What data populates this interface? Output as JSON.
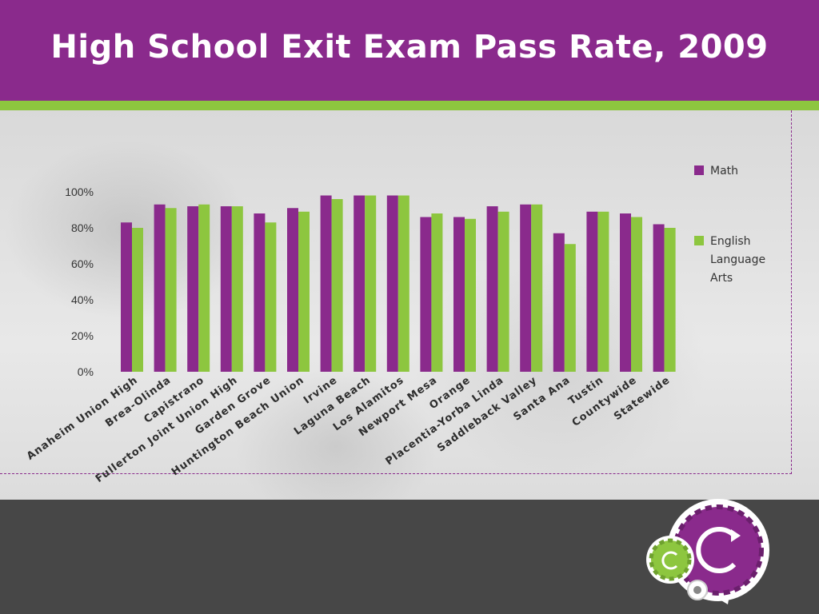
{
  "slide": {
    "title": "High School Exit Exam Pass Rate, 2009"
  },
  "colors": {
    "header": "#8a2a8c",
    "accent_green": "#8dc63f",
    "math": "#8a2a8c",
    "ela": "#8dc63f"
  },
  "chart_data": {
    "type": "bar",
    "title": "",
    "xlabel": "",
    "ylabel": "",
    "ylim": [
      0,
      100
    ],
    "yticks": [
      "0%",
      "20%",
      "40%",
      "60%",
      "80%",
      "100%"
    ],
    "grid": false,
    "legend_position": "right",
    "categories": [
      "Anaheim Union High",
      "Brea-Olinda",
      "Capistrano",
      "Fullerton Joint Union High",
      "Garden Grove",
      "Huntington Beach Union",
      "Irvine",
      "Laguna Beach",
      "Los Alamitos",
      "Newport Mesa",
      "Orange",
      "Placentia-Yorba Linda",
      "Saddleback Valley",
      "Santa Ana",
      "Tustin",
      "Countywide",
      "Statewide"
    ],
    "series": [
      {
        "name": "Math",
        "color": "#8a2a8c",
        "values": [
          83,
          93,
          92,
          92,
          88,
          91,
          98,
          98,
          98,
          86,
          86,
          92,
          93,
          77,
          89,
          88,
          82
        ]
      },
      {
        "name": "English Language Arts",
        "color": "#8dc63f",
        "values": [
          80,
          91,
          93,
          92,
          83,
          89,
          96,
          98,
          98,
          88,
          85,
          89,
          93,
          71,
          89,
          86,
          80
        ]
      }
    ],
    "legend": {
      "math_label": "Math",
      "ela_lines": [
        "English",
        "Language",
        "Arts"
      ]
    }
  }
}
